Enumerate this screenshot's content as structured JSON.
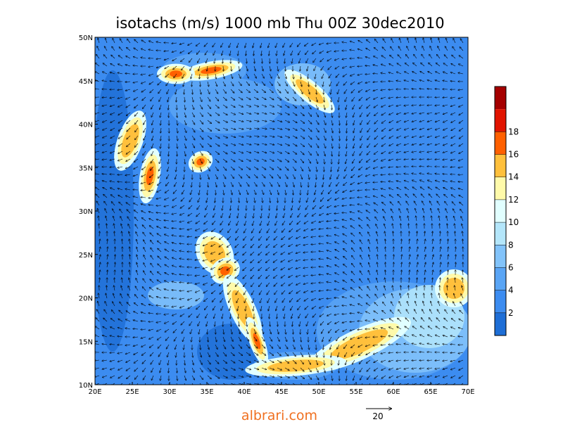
{
  "title": "isotachs (m/s) 1000 mb Thu 00Z 30dec2010",
  "map": {
    "lat_labels": [
      "50N",
      "45N",
      "40N",
      "35N",
      "30N",
      "25N",
      "20N",
      "15N",
      "10N"
    ],
    "lon_labels": [
      "20E",
      "25E",
      "30E",
      "35E",
      "40E",
      "45E",
      "50E",
      "55E",
      "60E",
      "65E",
      "70E"
    ]
  },
  "colorbar": {
    "ticks": [
      2,
      4,
      6,
      8,
      10,
      12,
      14,
      16,
      18
    ],
    "colors": [
      "#1e6ed6",
      "#3c8cf0",
      "#5aa5f5",
      "#82c3fa",
      "#b4e6fa",
      "#e1ffff",
      "#fffaaa",
      "#ffc03c",
      "#ff6000",
      "#e11400",
      "#a50000"
    ]
  },
  "reference_vector": {
    "label": "20"
  },
  "watermark": "albrari.com"
}
